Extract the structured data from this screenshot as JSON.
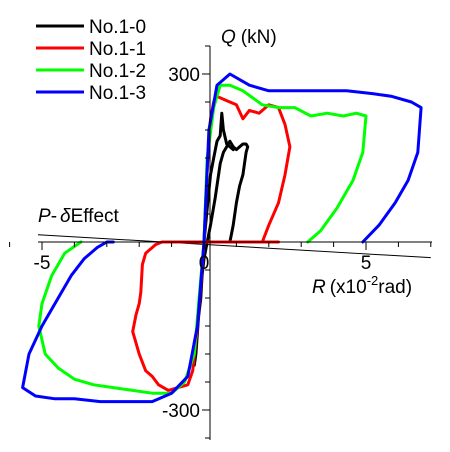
{
  "chart_data": {
    "type": "line",
    "x_axis": {
      "label_var": "R",
      "label_unit": "(x10",
      "label_exp": "-2",
      "label_unit_end": "rad)",
      "range": [
        -6,
        7
      ],
      "ticks": [
        -5,
        0,
        5
      ],
      "tick_labels": [
        "-5",
        "0",
        "5"
      ]
    },
    "y_axis": {
      "label_var": "Q",
      "label_unit": "(kN)",
      "range": [
        -360,
        360
      ],
      "ticks": [
        -300,
        300
      ],
      "tick_labels": [
        "-300",
        "300"
      ]
    },
    "annotation": {
      "p": "P",
      "dash": "-",
      "delta": "δ",
      "effect": "Effect",
      "line_x": [
        -5,
        7
      ],
      "line_y": [
        13,
        -28
      ]
    },
    "legend_position": "top-left",
    "grid": false,
    "series": [
      {
        "name": "No.1-0",
        "color": "#000000",
        "x": [
          0.8,
          0.9,
          1.0,
          1.1,
          1.2,
          1.25,
          1.3,
          1.35,
          1.3,
          1.2,
          1.1,
          1.0,
          0.9,
          0.8,
          0.7,
          0.6,
          0.5,
          0.35,
          0.2,
          0.1,
          0,
          -0.1,
          -0.15,
          -0.2,
          -0.25,
          -0.3,
          -0.35,
          -0.3,
          -0.2,
          -0.1,
          -0.05,
          0,
          0.1,
          0.2,
          0.3,
          0.4,
          0.5,
          0.55,
          0.6,
          0.7,
          0.8,
          0.9
        ],
        "y": [
          0,
          30,
          70,
          100,
          120,
          140,
          160,
          170,
          175,
          175,
          170,
          165,
          170,
          180,
          170,
          160,
          140,
          80,
          30,
          0,
          -30,
          -80,
          -120,
          -160,
          -200,
          -220,
          -200,
          -180,
          -150,
          -100,
          -50,
          0,
          60,
          120,
          150,
          180,
          190,
          230,
          200,
          175,
          170,
          165
        ]
      },
      {
        "name": "No.1-1",
        "color": "#ff0000",
        "x": [
          1.8,
          2.0,
          2.3,
          2.5,
          2.65,
          2.5,
          2.3,
          2.0,
          1.7,
          1.4,
          1.2,
          1.0,
          0.8,
          0.6,
          0.4,
          0.3,
          0.2,
          0.1,
          0,
          -0.1,
          -0.2,
          -0.35,
          -0.5,
          -0.8,
          -1.1,
          -1.4,
          -1.6,
          -1.8,
          -2.0,
          -2.2,
          -2.1,
          -2.0,
          -1.95,
          -1.9,
          -1.8,
          -1.7,
          -1.6,
          -1.5,
          -1.3,
          -1.0,
          -0.8,
          -0.6,
          -0.4,
          -0.3,
          -0.2,
          -0.1,
          0,
          0.2,
          0.4,
          0.6,
          0.8,
          1.0,
          1.3,
          1.6,
          2.0,
          2.3
        ],
        "y": [
          0,
          30,
          70,
          120,
          170,
          210,
          240,
          245,
          230,
          235,
          220,
          245,
          250,
          255,
          260,
          250,
          220,
          130,
          0,
          -80,
          -150,
          -230,
          -255,
          -260,
          -265,
          -255,
          -240,
          -230,
          -200,
          -160,
          -130,
          -110,
          -90,
          -40,
          -20,
          -15,
          -10,
          -5,
          0,
          0,
          0,
          0,
          0,
          0,
          0,
          0,
          0,
          0,
          0,
          0,
          0,
          0,
          0,
          0,
          0,
          0
        ]
      },
      {
        "name": "No.1-2",
        "color": "#00ff00",
        "x": [
          3.2,
          3.6,
          4.1,
          4.6,
          4.9,
          5.0,
          4.7,
          4.3,
          3.8,
          3.3,
          2.8,
          2.3,
          1.8,
          1.2,
          0.8,
          0.5,
          0.3,
          0.1,
          0,
          -0.15,
          -0.3,
          -0.6,
          -1.0,
          -1.6,
          -2.2,
          -2.8,
          -3.4,
          -4.0,
          -4.5,
          -4.9,
          -5.1,
          -5.0,
          -4.7,
          -4.3,
          -3.8
        ],
        "y": [
          0,
          20,
          60,
          110,
          160,
          225,
          230,
          225,
          230,
          225,
          240,
          240,
          245,
          270,
          280,
          280,
          240,
          150,
          0,
          -100,
          -200,
          -250,
          -270,
          -270,
          -265,
          -260,
          -255,
          -245,
          -225,
          -200,
          -150,
          -110,
          -60,
          -20,
          0
        ]
      },
      {
        "name": "No.1-3",
        "color": "#0000ff",
        "x": [
          4.9,
          5.4,
          5.9,
          6.3,
          6.6,
          6.7,
          6.4,
          5.8,
          5.2,
          4.4,
          3.6,
          2.8,
          2.0,
          1.4,
          0.8,
          0.4,
          0.15,
          0,
          -0.2,
          -0.5,
          -1.0,
          -1.6,
          -2.4,
          -3.2,
          -4.0,
          -4.6,
          -5.2,
          -5.6,
          -5.4,
          -5.0,
          -4.5,
          -4.1,
          -3.7,
          -3.3,
          -3.0,
          -2.8
        ],
        "y": [
          0,
          30,
          70,
          110,
          160,
          240,
          250,
          260,
          265,
          270,
          270,
          270,
          270,
          280,
          300,
          280,
          200,
          0,
          -150,
          -240,
          -270,
          -285,
          -285,
          -285,
          -280,
          -280,
          -275,
          -260,
          -200,
          -150,
          -100,
          -60,
          -30,
          -10,
          0,
          0
        ]
      }
    ]
  }
}
